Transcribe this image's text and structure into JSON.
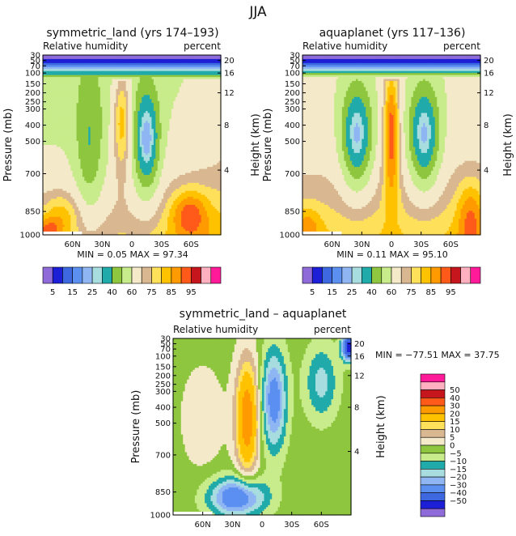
{
  "page_title": "JJA",
  "colors": {
    "absolute": [
      "#8e6bd9",
      "#1c1fd6",
      "#3d68e0",
      "#5b8ff0",
      "#8fb6f3",
      "#a8dde0",
      "#21aaaa",
      "#8ec63f",
      "#c8ec8b",
      "#f4e9c9",
      "#d9b891",
      "#ffe05a",
      "#ffc200",
      "#ff9a00",
      "#ff5a1a",
      "#c4161c",
      "#ffb0c0",
      "#ff1a9a"
    ],
    "difference": [
      "#8e6bd9",
      "#1c1fd6",
      "#3d68e0",
      "#5b8ff0",
      "#8fb6f3",
      "#a8dde0",
      "#21aaaa",
      "#c8ec8b",
      "#8ec63f",
      "#f4e9c9",
      "#d9b891",
      "#ffe05a",
      "#ffc200",
      "#ff9a00",
      "#ff5a1a",
      "#c4161c",
      "#ffb0c0",
      "#ff1a9a"
    ]
  },
  "chart_data": [
    {
      "type": "heatmap",
      "title": "symmetric_land  (yrs 174–193)",
      "left_subtitle": "Relative humidity",
      "right_subtitle": "percent",
      "ylabel": "Pressure  (mb)",
      "y2label": "Height  (km)",
      "x_ticks": [
        "60N",
        "30N",
        "0",
        "30S",
        "60S"
      ],
      "y_ticks": [
        "30",
        "50",
        "70",
        "100",
        "150",
        "200",
        "250",
        "300",
        "400",
        "500",
        "700",
        "850",
        "1000"
      ],
      "y2_ticks": [
        "20",
        "16",
        "12",
        "8",
        "4"
      ],
      "stats": "MIN  =   0.05   MAX  =  97.34",
      "colorbar_labels": [
        "5",
        "15",
        "25",
        "40",
        "60",
        "75",
        "85",
        "95"
      ]
    },
    {
      "type": "heatmap",
      "title": "aquaplanet  (yrs 117–136)",
      "left_subtitle": "Relative humidity",
      "right_subtitle": "percent",
      "ylabel": "Pressure  (mb)",
      "y2label": "Height  (km)",
      "x_ticks": [
        "60N",
        "30N",
        "0",
        "30S",
        "60S"
      ],
      "y_ticks": [
        "30",
        "50",
        "70",
        "100",
        "150",
        "200",
        "250",
        "300",
        "400",
        "500",
        "700",
        "850",
        "1000"
      ],
      "y2_ticks": [
        "20",
        "16",
        "12",
        "8",
        "4"
      ],
      "stats": "MIN  =   0.11   MAX  =  95.10",
      "colorbar_labels": [
        "5",
        "15",
        "25",
        "40",
        "60",
        "75",
        "85",
        "95"
      ]
    },
    {
      "type": "heatmap",
      "title": "symmetric_land – aquaplanet",
      "left_subtitle": "Relative humidity",
      "right_subtitle": "percent",
      "ylabel": "Pressure  (mb)",
      "y2label": "Height  (km)",
      "x_ticks": [
        "60N",
        "30N",
        "0",
        "30S",
        "60S"
      ],
      "y_ticks": [
        "30",
        "50",
        "70",
        "100",
        "150",
        "200",
        "250",
        "300",
        "400",
        "500",
        "700",
        "850",
        "1000"
      ],
      "y2_ticks": [
        "20",
        "16",
        "12",
        "8",
        "4"
      ],
      "stats": "MIN  = −77.51    MAX  =  37.75",
      "colorbar_labels": [
        "50",
        "40",
        "30",
        "20",
        "15",
        "10",
        "5",
        "0",
        "−5",
        "−10",
        "−15",
        "−20",
        "−30",
        "−40",
        "−50"
      ]
    }
  ]
}
